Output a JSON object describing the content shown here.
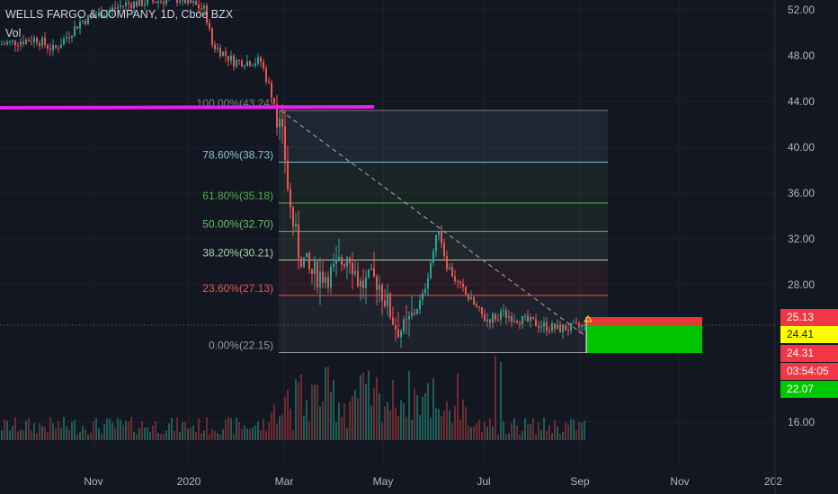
{
  "legend": {
    "title": "WELLS FARGO & COMPANY, 1D, Cboe BZX",
    "volume_label": "Vol"
  },
  "colors": {
    "up": "#26a69a",
    "down": "#ef5350",
    "vol_up": "#1e5e58",
    "vol_down": "#6e2b2e",
    "magenta": "#e91ee9",
    "yellow_tag": "#ffff00",
    "red_tag": "#f23645",
    "green_tag": "#00c800"
  },
  "price_axis": [
    "52.00",
    "48.00",
    "44.00",
    "40.00",
    "36.00",
    "32.00",
    "28.00",
    "16.00"
  ],
  "time_axis": [
    "Nov",
    "2020",
    "Mar",
    "May",
    "Jul",
    "Sep",
    "Nov",
    "202"
  ],
  "fib_levels": [
    {
      "label": "100.00%(43.24)",
      "price": 43.24,
      "color": "#787b86"
    },
    {
      "label": "78.60%(38.73)",
      "price": 38.73,
      "color": "#81c7d4"
    },
    {
      "label": "61.80%(35.18)",
      "price": 35.18,
      "color": "#4caf50"
    },
    {
      "label": "50.00%(32.70)",
      "price": 32.7,
      "color": "#66bb6a"
    },
    {
      "label": "38.20%(30.21)",
      "price": 30.21,
      "color": "#a5d6a7"
    },
    {
      "label": "23.60%(27.13)",
      "price": 27.13,
      "color": "#ef5350"
    },
    {
      "label": "0.00%(22.15)",
      "price": 22.15,
      "color": "#9598a1"
    }
  ],
  "price_tags": {
    "tag1": "25.13",
    "tag2": "24.41",
    "tag3": "24.31",
    "countdown": "03:54:05",
    "tag4": "22.07"
  },
  "icons": {
    "cursor": "arrow-cursor-icon"
  }
}
